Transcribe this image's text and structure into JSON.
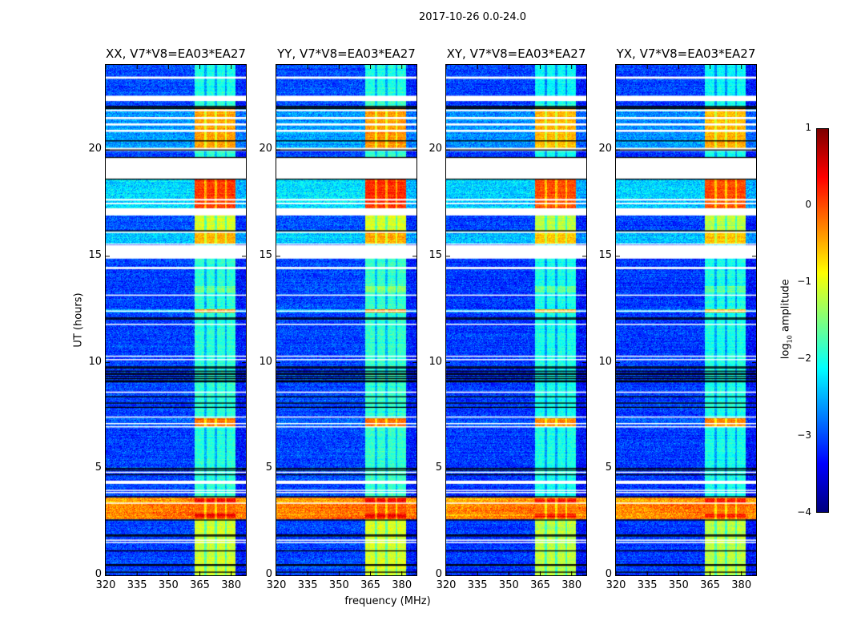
{
  "suptitle": "2017-10-26 0.0-24.0",
  "chart_data": {
    "type": "heatmap",
    "title": "2017-10-26 0.0-24.0",
    "xlabel": "frequency (MHz)",
    "ylabel": "UT (hours)",
    "xlim": [
      320,
      387
    ],
    "ylim": [
      0,
      24
    ],
    "xticks": [
      320,
      335,
      350,
      365,
      380
    ],
    "yticks": [
      0,
      5,
      10,
      15,
      20
    ],
    "colorbar": {
      "label_prefix": "log",
      "label_sub": "10",
      "label_suffix": " amplitude",
      "range": [
        -4,
        1
      ],
      "ticks": [
        "1",
        "0",
        "−1",
        "−2",
        "−3",
        "−4"
      ],
      "tick_values": [
        1,
        0,
        -1,
        -2,
        -3,
        -4
      ],
      "colormap": "jet"
    },
    "panels": [
      {
        "title": "XX, V7*V8=EA03*EA27",
        "offset": 0.0
      },
      {
        "title": "YY, V7*V8=EA03*EA27",
        "offset": 0.05
      },
      {
        "title": "XY, V7*V8=EA03*EA27",
        "offset": -0.1
      },
      {
        "title": "YX, V7*V8=EA03*EA27",
        "offset": -0.1
      }
    ],
    "rfi_band_mhz": [
      362.5,
      382
    ],
    "rfi_subband_gaps_mhz": [
      367.6,
      372.6,
      377.4
    ],
    "regions": [
      {
        "hours": [
          0,
          24
        ],
        "background": -3.05,
        "band": -1.9
      },
      {
        "hours": [
          22.5,
          24
        ],
        "background": -3.0,
        "band": -2.0
      },
      {
        "hours": [
          20.0,
          22.0
        ],
        "background": -2.6,
        "band": -0.4
      },
      {
        "hours": [
          16.9,
          18.6
        ],
        "background": -2.3,
        "band": 0.1
      },
      {
        "hours": [
          16.2,
          16.9
        ],
        "background": -3.0,
        "band": -1.1
      },
      {
        "hours": [
          15.55,
          16.2
        ],
        "background": -2.4,
        "band": -0.5
      },
      {
        "hours": [
          13.3,
          13.6
        ],
        "background": -3.05,
        "band": -1.5
      },
      {
        "hours": [
          12.35,
          12.5
        ],
        "background": -2.5,
        "band": -0.3
      },
      {
        "hours": [
          6.98,
          7.4
        ],
        "background": -2.9,
        "band": -0.2
      },
      {
        "hours": [
          0,
          2.65
        ],
        "background": -3.05,
        "band": -1.1
      },
      {
        "hours": [
          2.65,
          3.65
        ],
        "background": -0.3,
        "band": -0.1
      },
      {
        "hours": [
          3.4,
          3.6
        ],
        "background": -0.5,
        "band": 0.35
      },
      {
        "hours": [
          2.7,
          2.9
        ],
        "background": -0.4,
        "band": 0.35
      }
    ],
    "flagged_hours": [
      [
        23.35,
        23.45
      ],
      [
        22.3,
        22.55
      ],
      [
        21.82,
        21.9
      ],
      [
        21.45,
        21.55
      ],
      [
        21.15,
        21.25
      ],
      [
        20.85,
        20.95
      ],
      [
        19.95,
        20.1
      ],
      [
        18.63,
        19.66
      ],
      [
        17.62,
        17.7
      ],
      [
        17.45,
        17.52
      ],
      [
        16.92,
        17.26
      ],
      [
        16.1,
        16.16
      ],
      [
        15.55,
        15.6
      ],
      [
        14.89,
        15.52
      ],
      [
        14.4,
        14.5
      ],
      [
        13.15,
        13.2
      ],
      [
        12.4,
        12.45
      ],
      [
        11.78,
        11.83
      ],
      [
        10.28,
        10.33
      ],
      [
        10.12,
        10.17
      ],
      [
        8.58,
        8.64
      ],
      [
        7.42,
        7.47
      ],
      [
        7.11,
        7.16
      ],
      [
        6.96,
        7.01
      ],
      [
        4.82,
        4.87
      ],
      [
        4.3,
        4.45
      ],
      [
        3.97,
        4.02
      ],
      [
        3.87,
        3.92
      ],
      [
        3.38,
        3.42
      ],
      [
        1.63,
        1.68
      ],
      [
        1.53,
        1.57
      ]
    ],
    "gap_hours": [
      22.05,
      22.0,
      21.95,
      20.43,
      20.0,
      19.65,
      18.63,
      16.2,
      12.1,
      12.05,
      9.8,
      9.75,
      9.6,
      9.5,
      9.45,
      9.35,
      9.25,
      9.15,
      9.1,
      8.4,
      8.1,
      7.9,
      5.03,
      4.95,
      4.73,
      3.7,
      2.6,
      1.9,
      1.85,
      1.15,
      0.5,
      0.47,
      0.15
    ]
  }
}
